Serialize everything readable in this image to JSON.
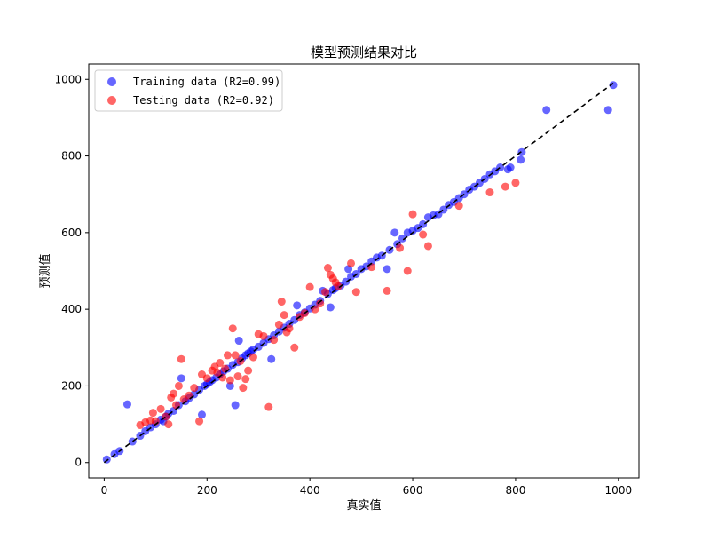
{
  "chart_data": {
    "type": "scatter",
    "title": "模型预测结果对比",
    "xlabel": "真实值",
    "ylabel": "预测值",
    "xlim": [
      -30,
      1040
    ],
    "ylim": [
      -40,
      1040
    ],
    "xticks": [
      0,
      200,
      400,
      600,
      800,
      1000
    ],
    "yticks": [
      0,
      200,
      400,
      600,
      800,
      1000
    ],
    "grid": false,
    "legend_position": "top-left",
    "reference_line": {
      "from": [
        0,
        0
      ],
      "to": [
        990,
        990
      ],
      "style": "dashed",
      "color": "#000000"
    },
    "series": [
      {
        "name": "Training data (R2=0.99)",
        "color": "#0000ff",
        "points": [
          [
            5,
            8
          ],
          [
            20,
            22
          ],
          [
            30,
            30
          ],
          [
            45,
            152
          ],
          [
            55,
            55
          ],
          [
            70,
            70
          ],
          [
            80,
            82
          ],
          [
            90,
            92
          ],
          [
            100,
            100
          ],
          [
            110,
            112
          ],
          [
            115,
            108
          ],
          [
            120,
            120
          ],
          [
            125,
            128
          ],
          [
            135,
            135
          ],
          [
            145,
            150
          ],
          [
            150,
            220
          ],
          [
            158,
            160
          ],
          [
            165,
            168
          ],
          [
            175,
            178
          ],
          [
            185,
            190
          ],
          [
            190,
            125
          ],
          [
            195,
            200
          ],
          [
            200,
            205
          ],
          [
            205,
            210
          ],
          [
            210,
            215
          ],
          [
            218,
            222
          ],
          [
            225,
            230
          ],
          [
            232,
            238
          ],
          [
            240,
            245
          ],
          [
            245,
            200
          ],
          [
            250,
            255
          ],
          [
            255,
            150
          ],
          [
            260,
            262
          ],
          [
            262,
            318
          ],
          [
            268,
            272
          ],
          [
            275,
            280
          ],
          [
            280,
            285
          ],
          [
            285,
            290
          ],
          [
            290,
            295
          ],
          [
            300,
            302
          ],
          [
            310,
            312
          ],
          [
            320,
            322
          ],
          [
            325,
            270
          ],
          [
            330,
            332
          ],
          [
            340,
            342
          ],
          [
            350,
            352
          ],
          [
            360,
            362
          ],
          [
            370,
            372
          ],
          [
            375,
            410
          ],
          [
            380,
            385
          ],
          [
            390,
            392
          ],
          [
            400,
            402
          ],
          [
            410,
            412
          ],
          [
            420,
            422
          ],
          [
            425,
            448
          ],
          [
            435,
            440
          ],
          [
            440,
            405
          ],
          [
            445,
            450
          ],
          [
            450,
            455
          ],
          [
            460,
            462
          ],
          [
            470,
            472
          ],
          [
            475,
            505
          ],
          [
            480,
            485
          ],
          [
            490,
            492
          ],
          [
            500,
            505
          ],
          [
            510,
            512
          ],
          [
            520,
            525
          ],
          [
            530,
            535
          ],
          [
            540,
            540
          ],
          [
            550,
            505
          ],
          [
            555,
            555
          ],
          [
            565,
            600
          ],
          [
            570,
            570
          ],
          [
            580,
            585
          ],
          [
            590,
            600
          ],
          [
            600,
            605
          ],
          [
            610,
            612
          ],
          [
            620,
            622
          ],
          [
            630,
            640
          ],
          [
            640,
            645
          ],
          [
            650,
            648
          ],
          [
            660,
            660
          ],
          [
            670,
            672
          ],
          [
            680,
            680
          ],
          [
            690,
            690
          ],
          [
            700,
            700
          ],
          [
            710,
            712
          ],
          [
            720,
            720
          ],
          [
            730,
            730
          ],
          [
            740,
            740
          ],
          [
            750,
            752
          ],
          [
            760,
            760
          ],
          [
            770,
            770
          ],
          [
            785,
            765
          ],
          [
            790,
            770
          ],
          [
            810,
            790
          ],
          [
            812,
            810
          ],
          [
            860,
            920
          ],
          [
            980,
            920
          ],
          [
            990,
            985
          ]
        ]
      },
      {
        "name": "Testing data (R2=0.92)",
        "color": "#ff0000",
        "points": [
          [
            70,
            98
          ],
          [
            80,
            105
          ],
          [
            90,
            110
          ],
          [
            95,
            130
          ],
          [
            100,
            108
          ],
          [
            110,
            140
          ],
          [
            120,
            120
          ],
          [
            125,
            100
          ],
          [
            130,
            170
          ],
          [
            135,
            180
          ],
          [
            140,
            150
          ],
          [
            145,
            200
          ],
          [
            150,
            270
          ],
          [
            155,
            165
          ],
          [
            165,
            175
          ],
          [
            175,
            195
          ],
          [
            185,
            108
          ],
          [
            190,
            230
          ],
          [
            200,
            220
          ],
          [
            210,
            240
          ],
          [
            215,
            250
          ],
          [
            220,
            235
          ],
          [
            225,
            260
          ],
          [
            230,
            222
          ],
          [
            235,
            245
          ],
          [
            240,
            280
          ],
          [
            245,
            215
          ],
          [
            250,
            350
          ],
          [
            255,
            280
          ],
          [
            260,
            225
          ],
          [
            265,
            265
          ],
          [
            270,
            195
          ],
          [
            275,
            218
          ],
          [
            280,
            240
          ],
          [
            290,
            275
          ],
          [
            300,
            335
          ],
          [
            310,
            330
          ],
          [
            320,
            145
          ],
          [
            330,
            320
          ],
          [
            340,
            360
          ],
          [
            345,
            420
          ],
          [
            350,
            385
          ],
          [
            355,
            340
          ],
          [
            360,
            350
          ],
          [
            370,
            300
          ],
          [
            380,
            380
          ],
          [
            390,
            390
          ],
          [
            400,
            458
          ],
          [
            410,
            400
          ],
          [
            420,
            415
          ],
          [
            430,
            445
          ],
          [
            435,
            508
          ],
          [
            440,
            490
          ],
          [
            445,
            480
          ],
          [
            450,
            470
          ],
          [
            455,
            460
          ],
          [
            480,
            520
          ],
          [
            490,
            445
          ],
          [
            520,
            510
          ],
          [
            550,
            448
          ],
          [
            575,
            560
          ],
          [
            590,
            500
          ],
          [
            600,
            648
          ],
          [
            620,
            595
          ],
          [
            630,
            565
          ],
          [
            690,
            670
          ],
          [
            750,
            705
          ],
          [
            780,
            720
          ],
          [
            800,
            730
          ]
        ]
      }
    ]
  }
}
